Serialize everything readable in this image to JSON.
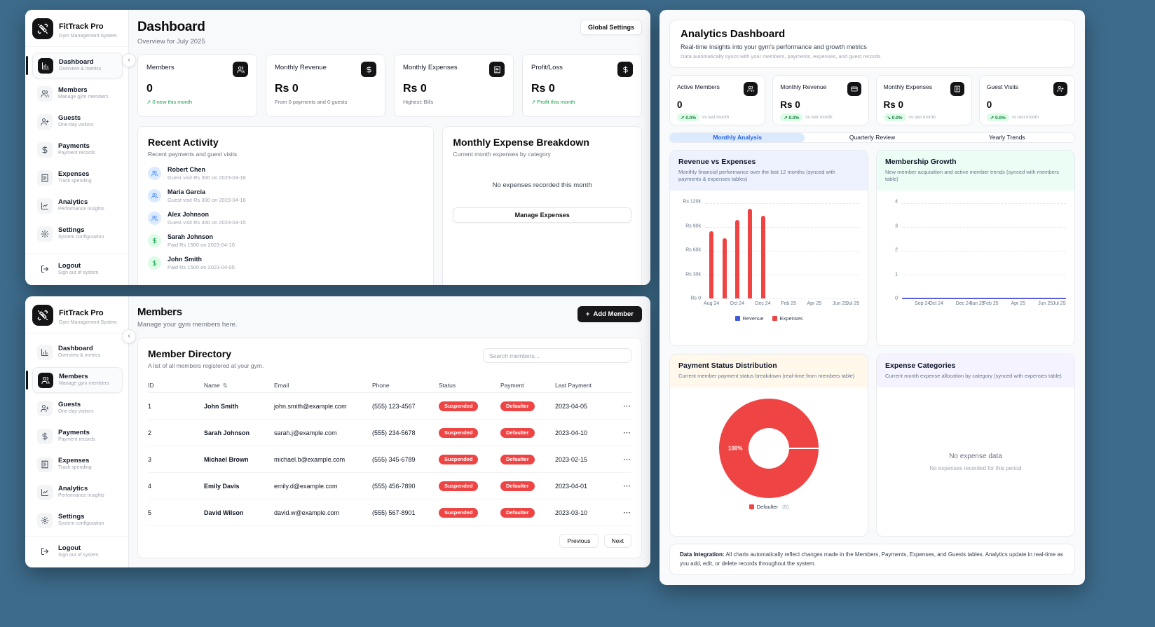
{
  "app": {
    "name": "FitTrack Pro",
    "tagline": "Gym Management System"
  },
  "sidebar": {
    "items": [
      {
        "label": "Dashboard",
        "sub": "Overview & metrics",
        "icon": "bar-chart"
      },
      {
        "label": "Members",
        "sub": "Manage gym members",
        "icon": "users"
      },
      {
        "label": "Guests",
        "sub": "One-day visitors",
        "icon": "user-plus"
      },
      {
        "label": "Payments",
        "sub": "Payment records",
        "icon": "dollar"
      },
      {
        "label": "Expenses",
        "sub": "Track spending",
        "icon": "receipt"
      },
      {
        "label": "Analytics",
        "sub": "Performance insights",
        "icon": "line-chart"
      },
      {
        "label": "Settings",
        "sub": "System configuration",
        "icon": "gear"
      }
    ],
    "logout": {
      "label": "Logout",
      "sub": "Sign out of system",
      "icon": "logout"
    }
  },
  "dashboard": {
    "title": "Dashboard",
    "subtitle": "Overview for July 2025",
    "global_settings_label": "Global Settings",
    "stats": [
      {
        "label": "Members",
        "value": "0",
        "note": "↗ 0 new this month",
        "icon": "users"
      },
      {
        "label": "Monthly Revenue",
        "value": "Rs 0",
        "note": "From 0 payments and 0 guests",
        "icon": "dollar"
      },
      {
        "label": "Monthly Expenses",
        "value": "Rs 0",
        "note": "Highest: Bills",
        "icon": "receipt"
      },
      {
        "label": "Profit/Loss",
        "value": "Rs 0",
        "note": "↗ Profit this month",
        "icon": "dollar"
      }
    ],
    "recent_activity": {
      "title": "Recent Activity",
      "subtitle": "Recent payments and guest visits",
      "items": [
        {
          "name": "Robert Chen",
          "detail": "Guest visit Rs 300 on 2023-04-18",
          "type": "guest"
        },
        {
          "name": "Maria Garcia",
          "detail": "Guest visit Rs 300 on 2023-04-16",
          "type": "guest"
        },
        {
          "name": "Alex Johnson",
          "detail": "Guest visit Rs 300 on 2023-04-15",
          "type": "guest"
        },
        {
          "name": "Sarah Johnson",
          "detail": "Paid Rs 1500 on 2023-04-10",
          "type": "payment"
        },
        {
          "name": "John Smith",
          "detail": "Paid Rs 1500 on 2023-04-05",
          "type": "payment"
        }
      ]
    },
    "expense_breakdown": {
      "title": "Monthly Expense Breakdown",
      "subtitle": "Current month expenses by category",
      "empty_text": "No expenses recorded this month",
      "button_label": "Manage Expenses"
    }
  },
  "members_page": {
    "title": "Members",
    "subtitle": "Manage your gym members here.",
    "add_button_label": "Add Member",
    "directory": {
      "title": "Member Directory",
      "subtitle": "A list of all members registered at your gym.",
      "search_placeholder": "Search members...",
      "columns": [
        "ID",
        "Name",
        "Email",
        "Phone",
        "Status",
        "Payment",
        "Last Payment"
      ],
      "rows": [
        {
          "id": "1",
          "name": "John Smith",
          "email": "john.smith@example.com",
          "phone": "(555) 123-4567",
          "status": "Suspended",
          "payment": "Defaulter",
          "last_payment": "2023-04-05"
        },
        {
          "id": "2",
          "name": "Sarah Johnson",
          "email": "sarah.j@example.com",
          "phone": "(555) 234-5678",
          "status": "Suspended",
          "payment": "Defaulter",
          "last_payment": "2023-04-10"
        },
        {
          "id": "3",
          "name": "Michael Brown",
          "email": "michael.b@example.com",
          "phone": "(555) 345-6789",
          "status": "Suspended",
          "payment": "Defaulter",
          "last_payment": "2023-02-15"
        },
        {
          "id": "4",
          "name": "Emily Davis",
          "email": "emily.d@example.com",
          "phone": "(555) 456-7890",
          "status": "Suspended",
          "payment": "Defaulter",
          "last_payment": "2023-04-01"
        },
        {
          "id": "5",
          "name": "David Wilson",
          "email": "david.w@example.com",
          "phone": "(555) 567-8901",
          "status": "Suspended",
          "payment": "Defaulter",
          "last_payment": "2023-03-10"
        }
      ],
      "pagination": {
        "previous": "Previous",
        "next": "Next"
      }
    }
  },
  "analytics": {
    "title": "Analytics Dashboard",
    "subtitle": "Real-time insights into your gym's performance and growth metrics",
    "sync_note": "Data automatically syncs with your members, payments, expenses, and guest records",
    "stats": [
      {
        "label": "Active Members",
        "value": "0",
        "change": "↗ 0.0%",
        "vs": "vs last month",
        "icon": "users"
      },
      {
        "label": "Monthly Revenue",
        "value": "Rs 0",
        "change": "↗ 0.0%",
        "vs": "vs last month",
        "icon": "credit-card"
      },
      {
        "label": "Monthly Expenses",
        "value": "Rs 0",
        "change": "↘ 0.0%",
        "vs": "vs last month",
        "icon": "receipt"
      },
      {
        "label": "Guest Visits",
        "value": "0",
        "change": "↗ 0.0%",
        "vs": "vs last month",
        "icon": "user-plus"
      }
    ],
    "tabs": [
      {
        "label": "Monthly Analysis",
        "active": true
      },
      {
        "label": "Quarterly Review",
        "active": false
      },
      {
        "label": "Yearly Trends",
        "active": false
      }
    ],
    "charts": {
      "revenue_expenses": {
        "type": "bar",
        "title": "Revenue vs Expenses",
        "subtitle": "Monthly financial performance over the last 12 months (synced with payments & expenses tables)",
        "months": [
          "Aug 24",
          "Sep 24",
          "Oct 24",
          "Nov 24",
          "Dec 24",
          "Jan 25",
          "Feb 25",
          "Mar 25",
          "Apr 25",
          "May 25",
          "Jun 25",
          "Jul 25"
        ],
        "x_tick_labels": [
          "Aug 24",
          "Oct 24",
          "Dec 24",
          "Feb 25",
          "Apr 25",
          "Jun 25",
          "Jul 25"
        ],
        "y_ticks": [
          "Rs 120k",
          "Rs 90k",
          "Rs 60k",
          "Rs 30k",
          "Rs 0"
        ],
        "ylim": [
          0,
          120000
        ],
        "series": [
          {
            "name": "Revenue",
            "color": "#3b5bdb",
            "values": [
              0,
              0,
              0,
              0,
              0,
              0,
              0,
              0,
              0,
              0,
              0,
              0
            ]
          },
          {
            "name": "Expenses",
            "color": "#ee4444",
            "values": [
              85000,
              76000,
              99000,
              113000,
              104000,
              0,
              0,
              0,
              0,
              0,
              0,
              0
            ]
          }
        ]
      },
      "membership_growth": {
        "type": "line",
        "title": "Membership Growth",
        "subtitle": "New member acquisition and active member trends (synced with members table)",
        "months": [
          "Aug 24",
          "Sep 24",
          "Oct 24",
          "Nov 24",
          "Dec 24",
          "Jan 25",
          "Feb 25",
          "Mar 25",
          "Apr 25",
          "May 25",
          "Jun 25",
          "Jul 25"
        ],
        "x_tick_labels": [
          "Sep 24",
          "Oct 24",
          "Dec 24",
          "Jan 25",
          "Feb 25",
          "Apr 25",
          "Jun 25",
          "Jul 25"
        ],
        "y_ticks": [
          "4",
          "3",
          "2",
          "1",
          "0"
        ],
        "ylim": [
          0,
          4
        ],
        "values": [
          0,
          0,
          0,
          0,
          0,
          0,
          0,
          0,
          0,
          0,
          0,
          0
        ],
        "line_color": "#5a5fd8"
      },
      "payment_status": {
        "type": "donut",
        "title": "Payment Status Distribution",
        "subtitle": "Current member payment status breakdown (real-time from members table)",
        "center_label": "100%",
        "slices": [
          {
            "label": "Defaulter",
            "count": 5,
            "pct": 100,
            "color": "#ee4444"
          }
        ]
      },
      "expense_categories": {
        "title": "Expense Categories",
        "subtitle": "Current month expense allocation by category (synced with expenses table)",
        "empty_title": "No expense data",
        "empty_sub": "No expenses recorded for this period"
      }
    },
    "footer": {
      "bold": "Data Integration:",
      "text": " All charts automatically reflect changes made in the Members, Payments, Expenses, and Guests tables. Analytics update in real-time as you add, edit, or delete records throughout the system."
    }
  }
}
